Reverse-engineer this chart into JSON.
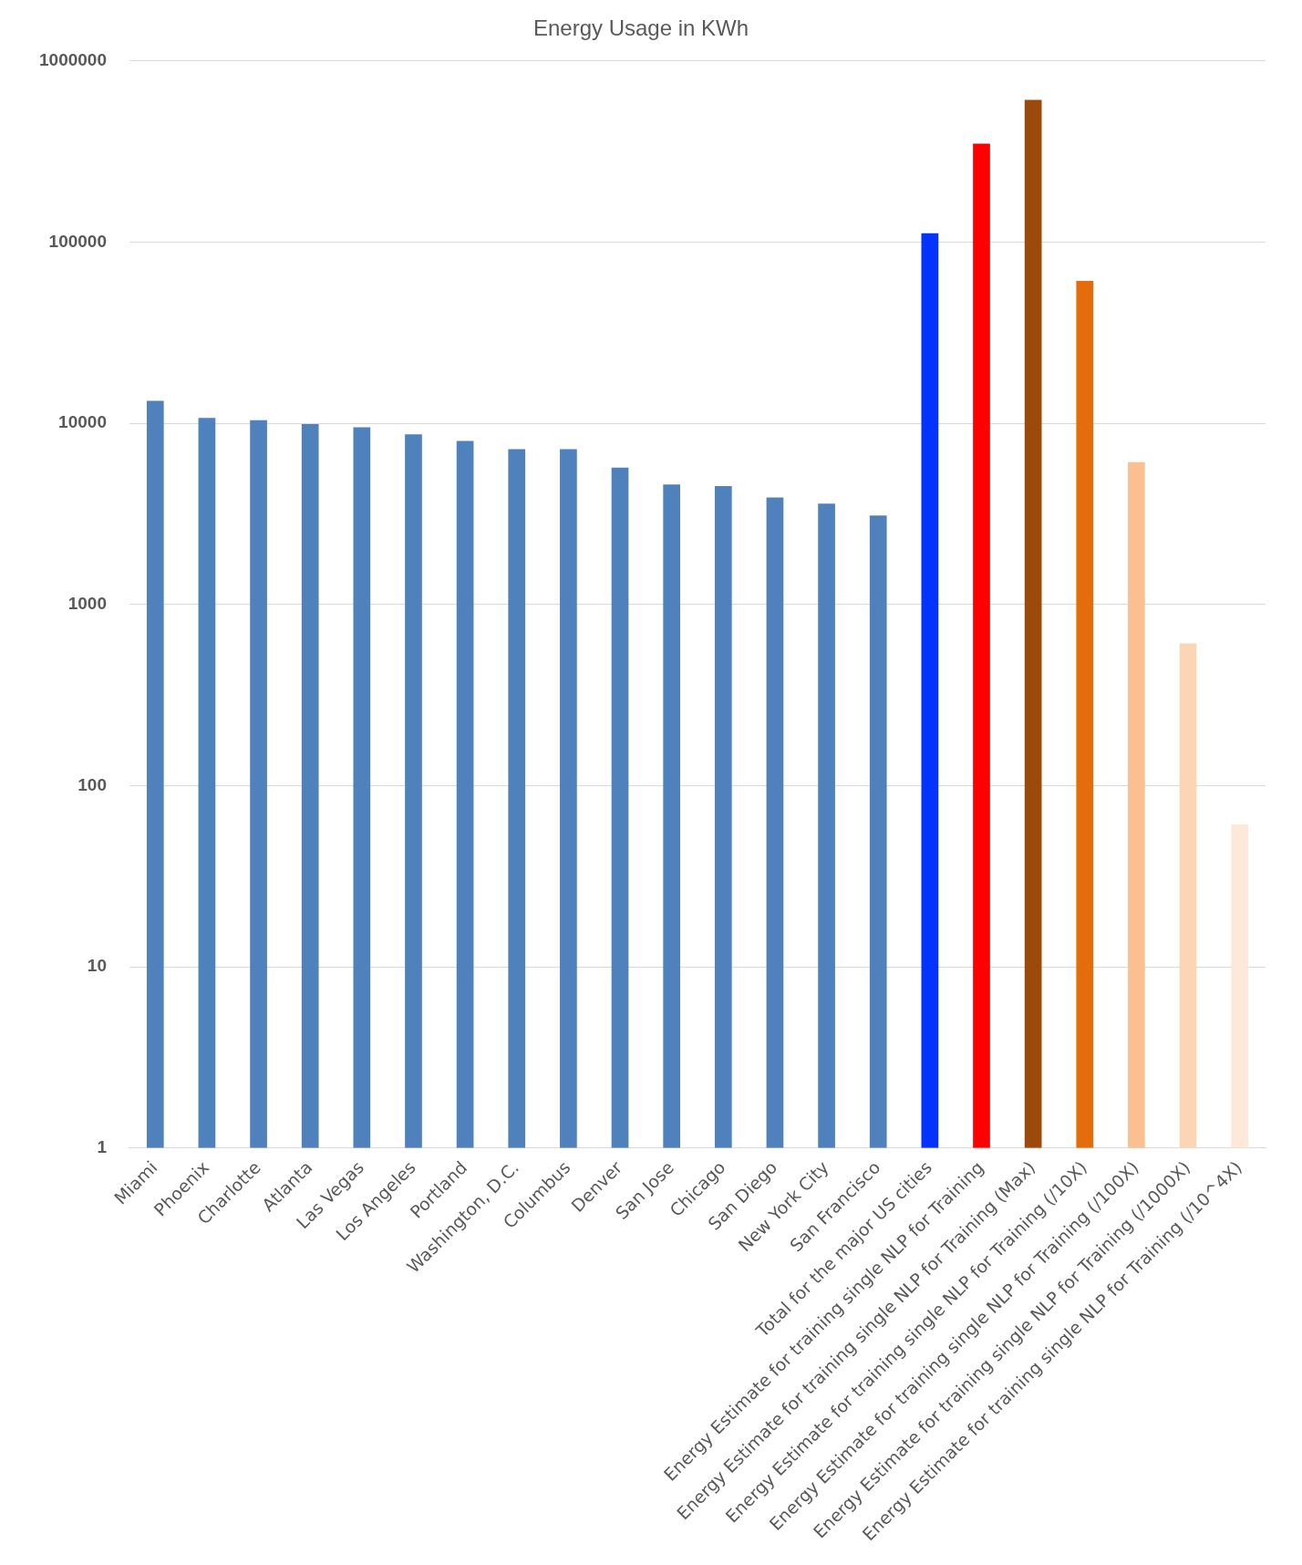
{
  "chart_data": {
    "type": "bar",
    "title": "Energy Usage in KWh",
    "categories": [
      "Miami",
      "Phoenix",
      "Charlotte",
      "Atlanta",
      "Las Vegas",
      "Los Angeles",
      "Portland",
      "Washington, D.C.",
      "Columbus",
      "Denver",
      "San Jose",
      "Chicago",
      "San Diego",
      "New York City",
      "San Francisco",
      "Total for the major US cities",
      "Energy Estimate for training single NLP for Training",
      "Energy Estimate for training single NLP for Training (Max)",
      "Energy Estimate for training single NLP for Training (/10X)",
      "Energy Estimate for training single NLP for Training (/100X)",
      "Energy Estimate for training single NLP for Training (/1000X)",
      "Energy Estimate for training single NLP for Training (/10^4X)"
    ],
    "values": [
      13300,
      10700,
      10400,
      9900,
      9500,
      8700,
      8000,
      7200,
      7200,
      5700,
      4600,
      4500,
      3900,
      3600,
      3100,
      112000,
      350000,
      610000,
      61000,
      6100,
      610,
      61
    ],
    "colors": [
      "#4f81bd",
      "#4f81bd",
      "#4f81bd",
      "#4f81bd",
      "#4f81bd",
      "#4f81bd",
      "#4f81bd",
      "#4f81bd",
      "#4f81bd",
      "#4f81bd",
      "#4f81bd",
      "#4f81bd",
      "#4f81bd",
      "#4f81bd",
      "#4f81bd",
      "#0433ff",
      "#ff0000",
      "#9c4a0c",
      "#e46c0a",
      "#fac090",
      "#fcd5b4",
      "#fde9d9"
    ],
    "log": true,
    "ylim": [
      1,
      1000000
    ],
    "yticks": [
      1,
      10,
      100,
      1000,
      10000,
      100000,
      1000000
    ],
    "grid": "y",
    "legend": false
  }
}
